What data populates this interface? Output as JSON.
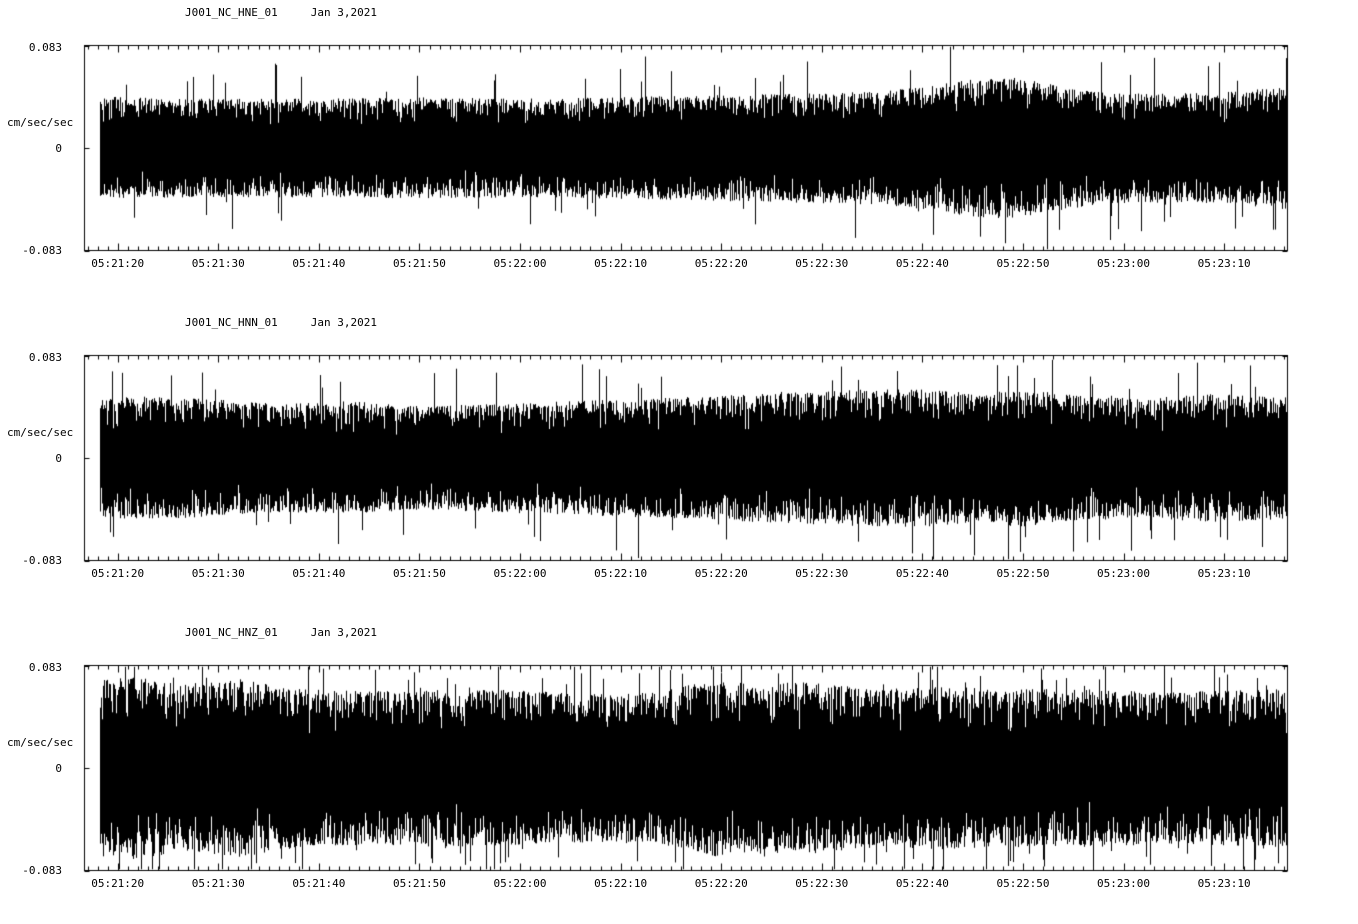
{
  "page": {
    "background": "#ffffff",
    "foreground": "#000000",
    "description": "Three-component strong-motion seismogram display"
  },
  "chart_data": [
    {
      "type": "line",
      "subtype": "seismogram",
      "trace_id": "J001_NC_HNE_01",
      "date": "Jan 3,2021",
      "ylabel": "cm/sec/sec",
      "ylim": [
        -0.083,
        0.083
      ],
      "ytick_labels": [
        "0.083",
        "0",
        "-0.083"
      ],
      "ytick_values": [
        0.083,
        0,
        -0.083
      ],
      "x_tick_labels": [
        "05:21:20",
        "05:21:30",
        "05:21:40",
        "05:21:50",
        "05:22:00",
        "05:22:10",
        "05:22:20",
        "05:22:30",
        "05:22:40",
        "05:22:50",
        "05:23:00",
        "05:23:10"
      ],
      "duration_seconds": 119.6,
      "first_tick_offset_seconds": 3.3,
      "major_tick_interval_seconds": 10,
      "minor_tick_interval_seconds": 1,
      "trace_start_offset_seconds": 1.5,
      "grid": false,
      "legend": false,
      "amplitude_envelope": [
        [
          0,
          0.042
        ],
        [
          0.08,
          0.04
        ],
        [
          0.18,
          0.04
        ],
        [
          0.28,
          0.041
        ],
        [
          0.38,
          0.04
        ],
        [
          0.48,
          0.042
        ],
        [
          0.58,
          0.044
        ],
        [
          0.66,
          0.046
        ],
        [
          0.7,
          0.05
        ],
        [
          0.74,
          0.056
        ],
        [
          0.77,
          0.058
        ],
        [
          0.8,
          0.052
        ],
        [
          0.84,
          0.046
        ],
        [
          0.9,
          0.044
        ],
        [
          0.96,
          0.046
        ],
        [
          1,
          0.05
        ]
      ],
      "spike_probability": 0.03,
      "spike_scale": 1.55
    },
    {
      "type": "line",
      "subtype": "seismogram",
      "trace_id": "J001_NC_HNN_01",
      "date": "Jan 3,2021",
      "ylabel": "cm/sec/sec",
      "ylim": [
        -0.083,
        0.083
      ],
      "ytick_labels": [
        "0.083",
        "0",
        "-0.083"
      ],
      "ytick_values": [
        0.083,
        0,
        -0.083
      ],
      "x_tick_labels": [
        "05:21:20",
        "05:21:30",
        "05:21:40",
        "05:21:50",
        "05:22:00",
        "05:22:10",
        "05:22:20",
        "05:22:30",
        "05:22:40",
        "05:22:50",
        "05:23:00",
        "05:23:10"
      ],
      "duration_seconds": 119.6,
      "first_tick_offset_seconds": 3.3,
      "major_tick_interval_seconds": 10,
      "minor_tick_interval_seconds": 1,
      "trace_start_offset_seconds": 1.5,
      "grid": false,
      "legend": false,
      "amplitude_envelope": [
        [
          0,
          0.046
        ],
        [
          0.04,
          0.05
        ],
        [
          0.1,
          0.048
        ],
        [
          0.16,
          0.044
        ],
        [
          0.22,
          0.046
        ],
        [
          0.28,
          0.042
        ],
        [
          0.34,
          0.044
        ],
        [
          0.4,
          0.046
        ],
        [
          0.46,
          0.048
        ],
        [
          0.52,
          0.05
        ],
        [
          0.58,
          0.053
        ],
        [
          0.64,
          0.055
        ],
        [
          0.7,
          0.056
        ],
        [
          0.74,
          0.052
        ],
        [
          0.78,
          0.056
        ],
        [
          0.83,
          0.05
        ],
        [
          0.88,
          0.048
        ],
        [
          0.93,
          0.052
        ],
        [
          1,
          0.05
        ]
      ],
      "spike_probability": 0.035,
      "spike_scale": 1.5
    },
    {
      "type": "line",
      "subtype": "seismogram",
      "trace_id": "J001_NC_HNZ_01",
      "date": "Jan 3,2021",
      "ylabel": "cm/sec/sec",
      "ylim": [
        -0.083,
        0.083
      ],
      "ytick_labels": [
        "0.083",
        "0",
        "-0.083"
      ],
      "ytick_values": [
        0.083,
        0,
        -0.083
      ],
      "x_tick_labels": [
        "05:21:20",
        "05:21:30",
        "05:21:40",
        "05:21:50",
        "05:22:00",
        "05:22:10",
        "05:22:20",
        "05:22:30",
        "05:22:40",
        "05:22:50",
        "05:23:00",
        "05:23:10"
      ],
      "duration_seconds": 119.6,
      "first_tick_offset_seconds": 3.3,
      "major_tick_interval_seconds": 10,
      "minor_tick_interval_seconds": 1,
      "trace_start_offset_seconds": 1.5,
      "grid": false,
      "legend": false,
      "amplitude_envelope": [
        [
          0,
          0.07
        ],
        [
          0.04,
          0.074
        ],
        [
          0.08,
          0.068
        ],
        [
          0.13,
          0.072
        ],
        [
          0.18,
          0.064
        ],
        [
          0.24,
          0.062
        ],
        [
          0.3,
          0.064
        ],
        [
          0.36,
          0.063
        ],
        [
          0.42,
          0.06
        ],
        [
          0.48,
          0.062
        ],
        [
          0.52,
          0.072
        ],
        [
          0.56,
          0.068
        ],
        [
          0.6,
          0.07
        ],
        [
          0.66,
          0.064
        ],
        [
          0.72,
          0.066
        ],
        [
          0.78,
          0.064
        ],
        [
          0.84,
          0.064
        ],
        [
          0.9,
          0.061
        ],
        [
          0.95,
          0.063
        ],
        [
          1,
          0.064
        ]
      ],
      "spike_probability": 0.05,
      "spike_scale": 1.35
    }
  ]
}
